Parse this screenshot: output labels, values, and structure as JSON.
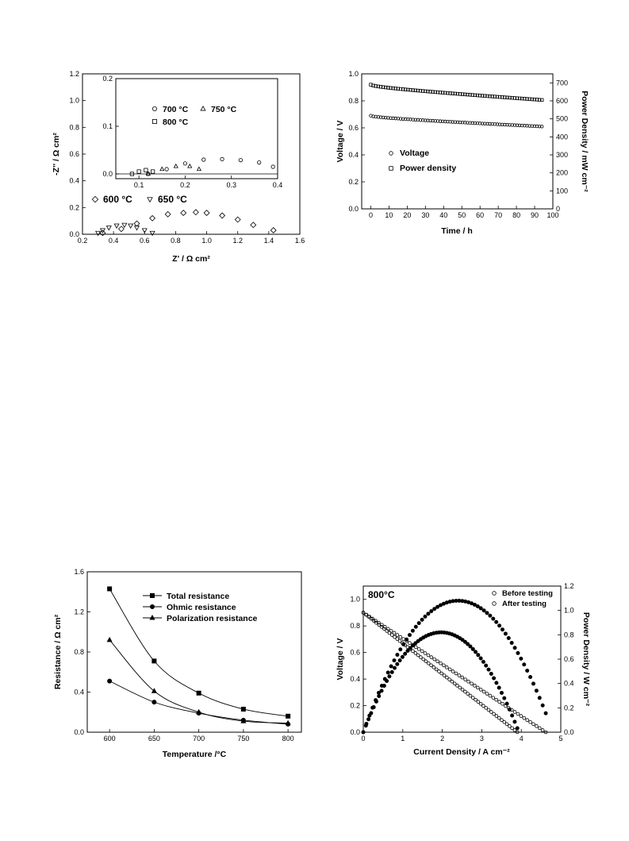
{
  "chart_data": [
    {
      "id": "eis",
      "type": "scatter",
      "xlabel": "Z' / Ω cm²",
      "ylabel": "-Z'' / Ω cm²",
      "xlim": [
        0.2,
        1.6
      ],
      "ylim": [
        0,
        1.2
      ],
      "xticks": [
        "0.2",
        "0.4",
        "0.6",
        "0.8",
        "1.0",
        "1.2",
        "1.4",
        "1.6"
      ],
      "yticks": [
        "0.0",
        "0.2",
        "0.4",
        "0.6",
        "0.8",
        "1.0",
        "1.2"
      ],
      "series": [
        {
          "name": "600 °C",
          "marker": "diamond",
          "x": [
            0.33,
            0.45,
            0.55,
            0.65,
            0.75,
            0.85,
            0.93,
            1.0,
            1.1,
            1.2,
            1.3,
            1.43
          ],
          "y": [
            0.01,
            0.04,
            0.08,
            0.12,
            0.15,
            0.16,
            0.165,
            0.16,
            0.14,
            0.11,
            0.07,
            0.03
          ]
        },
        {
          "name": "650 °C",
          "marker": "triangle-down",
          "x": [
            0.3,
            0.33,
            0.37,
            0.42,
            0.47,
            0.51,
            0.55,
            0.6,
            0.65
          ],
          "y": [
            0.01,
            0.03,
            0.05,
            0.065,
            0.07,
            0.065,
            0.05,
            0.03,
            0.01
          ]
        }
      ],
      "inset": {
        "xlim": [
          0.05,
          0.4
        ],
        "ylim": [
          -0.01,
          0.2
        ],
        "xticks": [
          "0.1",
          "0.2",
          "0.3",
          "0.4"
        ],
        "yticks": [
          "0.0",
          "0.1",
          "0.2"
        ],
        "series": [
          {
            "name": "700 °C",
            "marker": "circle",
            "x": [
              0.12,
              0.16,
              0.2,
              0.24,
              0.28,
              0.32,
              0.36,
              0.39
            ],
            "y": [
              0.0,
              0.01,
              0.022,
              0.03,
              0.031,
              0.029,
              0.024,
              0.015
            ]
          },
          {
            "name": "750 °C",
            "marker": "triangle",
            "x": [
              0.12,
              0.15,
              0.18,
              0.21,
              0.23
            ],
            "y": [
              0.0,
              0.01,
              0.016,
              0.016,
              0.01
            ]
          },
          {
            "name": "800 °C",
            "marker": "square",
            "x": [
              0.085,
              0.1,
              0.115,
              0.13
            ],
            "y": [
              0.0,
              0.005,
              0.008,
              0.005
            ]
          }
        ]
      }
    },
    {
      "id": "stability",
      "type": "scatter",
      "xlabel": "Time / h",
      "ylabel": "Voltage / V",
      "y2label": "Power Density / mW cm⁻²",
      "xlim": [
        -5,
        100
      ],
      "ylim": [
        0,
        1.0
      ],
      "y2lim": [
        0,
        750
      ],
      "xticks": [
        "0",
        "10",
        "20",
        "30",
        "40",
        "50",
        "60",
        "70",
        "80",
        "90",
        "100"
      ],
      "yticks": [
        "0.0",
        "0.2",
        "0.4",
        "0.6",
        "0.8",
        "1.0"
      ],
      "y2ticks": [
        "0",
        "100",
        "200",
        "300",
        "400",
        "500",
        "600",
        "700"
      ],
      "series": [
        {
          "name": "Voltage",
          "marker": "circle",
          "axis": "y",
          "x_start": 0,
          "x_end": 94,
          "y_start": 0.69,
          "y_end": 0.61
        },
        {
          "name": "Power density",
          "marker": "square",
          "axis": "y2",
          "x_start": 0,
          "x_end": 94,
          "y_start": 690,
          "y_end": 605
        }
      ]
    },
    {
      "id": "resistance",
      "type": "line",
      "xlabel": "Temperature /°C",
      "ylabel": "Resistance / Ω cm²",
      "xlim": [
        575,
        815
      ],
      "ylim": [
        0,
        1.6
      ],
      "xticks": [
        "600",
        "650",
        "700",
        "750",
        "800"
      ],
      "yticks": [
        "0.0",
        "0.4",
        "0.8",
        "1.2",
        "1.6"
      ],
      "x": [
        600,
        650,
        700,
        750,
        800
      ],
      "series": [
        {
          "name": "Total resistance",
          "marker": "square",
          "values": [
            1.43,
            0.71,
            0.39,
            0.23,
            0.16
          ]
        },
        {
          "name": "Ohmic resistance",
          "marker": "circle",
          "values": [
            0.51,
            0.3,
            0.19,
            0.12,
            0.08
          ]
        },
        {
          "name": "Polarization resistance",
          "marker": "triangle",
          "values": [
            0.92,
            0.41,
            0.2,
            0.11,
            0.09
          ]
        }
      ]
    },
    {
      "id": "iv",
      "type": "scatter",
      "annotation": "800°C",
      "xlabel": "Current Density / A cm⁻²",
      "ylabel": "Voltage / V",
      "y2label": "Power Density / W cm⁻²",
      "xlim": [
        0,
        5
      ],
      "ylim": [
        0,
        1.1
      ],
      "y2lim": [
        0,
        1.2
      ],
      "xticks": [
        "0",
        "1",
        "2",
        "3",
        "4",
        "5"
      ],
      "yticks": [
        "0.0",
        "0.2",
        "0.4",
        "0.6",
        "0.8",
        "1.0"
      ],
      "y2ticks": [
        "0.0",
        "0.2",
        "0.4",
        "0.6",
        "0.8",
        "1.0",
        "1.2"
      ],
      "series": [
        {
          "name": "Before testing",
          "marker": "circle-open",
          "voc": 0.9,
          "jmax": 4.62,
          "peak_power": 1.08,
          "peak_current": 2.4
        },
        {
          "name": "After testing",
          "marker": "circle-open",
          "voc": 0.9,
          "jmax": 3.9,
          "peak_power": 0.82,
          "peak_current": 1.97
        }
      ]
    }
  ]
}
